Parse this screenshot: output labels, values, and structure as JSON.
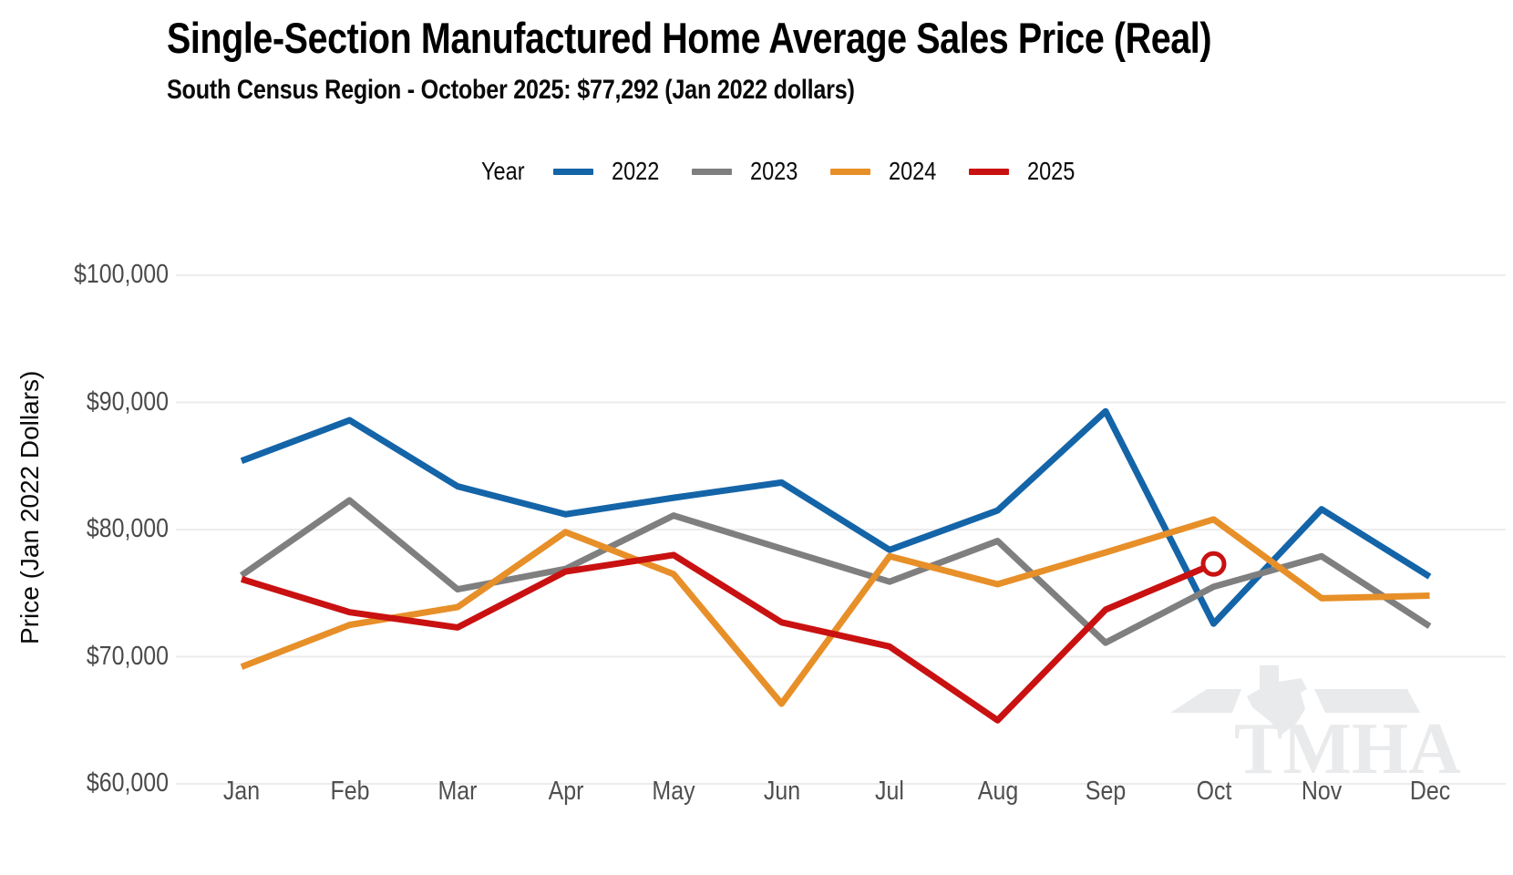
{
  "title": "Single-Section Manufactured Home Average Sales Price (Real)",
  "subtitle": "South Census Region - October 2025: $77,292 (Jan 2022 dollars)",
  "legend": {
    "label": "Year",
    "entries": [
      {
        "label": "2022",
        "color": "#1464a8"
      },
      {
        "label": "2023",
        "color": "#7f7f7f"
      },
      {
        "label": "2024",
        "color": "#e78f28"
      },
      {
        "label": "2025",
        "color": "#c91111"
      }
    ]
  },
  "y_axis": {
    "title": "Price (Jan 2022 Dollars)",
    "tick_labels": [
      "$100,000",
      "$90,000",
      "$80,000",
      "$70,000",
      "$60,000"
    ],
    "tick_values": [
      100000,
      90000,
      80000,
      70000,
      60000
    ]
  },
  "x_axis": {
    "tick_labels": [
      "Jan",
      "Feb",
      "Mar",
      "Apr",
      "May",
      "Jun",
      "Jul",
      "Aug",
      "Sep",
      "Oct",
      "Nov",
      "Dec"
    ]
  },
  "watermark": "TMHA",
  "colors": {
    "gridline": "#ececec",
    "background": "#ffffff",
    "highlight_marker_fill": "#ffffff"
  },
  "chart_data": {
    "type": "line",
    "title": "Single-Section Manufactured Home Average Sales Price (Real)",
    "subtitle": "South Census Region - October 2025: $77,292 (Jan 2022 dollars)",
    "xlabel": "",
    "ylabel": "Price (Jan 2022 Dollars)",
    "ylim": [
      60000,
      100000
    ],
    "grid": "horizontal",
    "legend_position": "top-center",
    "categories": [
      "Jan",
      "Feb",
      "Mar",
      "Apr",
      "May",
      "Jun",
      "Jul",
      "Aug",
      "Sep",
      "Oct",
      "Nov",
      "Dec"
    ],
    "series": [
      {
        "name": "2022",
        "color": "#1464a8",
        "values": [
          85400,
          88600,
          83400,
          81200,
          82500,
          83700,
          78400,
          81500,
          89300,
          72600,
          81600,
          76300
        ]
      },
      {
        "name": "2023",
        "color": "#7f7f7f",
        "values": [
          76400,
          82300,
          75300,
          76900,
          81100,
          78500,
          75900,
          79100,
          71100,
          75500,
          77900,
          72400
        ]
      },
      {
        "name": "2024",
        "color": "#e78f28",
        "values": [
          69200,
          72500,
          73900,
          79800,
          76500,
          66300,
          77900,
          75700,
          78200,
          80800,
          74600,
          74800
        ]
      },
      {
        "name": "2025",
        "color": "#c91111",
        "values": [
          76100,
          73500,
          72300,
          76700,
          78000,
          72700,
          70800,
          65000,
          73700,
          77292,
          null,
          null
        ],
        "endpoint_marker": {
          "month": "Oct",
          "value": 77292,
          "style": "open-circle"
        }
      }
    ]
  }
}
